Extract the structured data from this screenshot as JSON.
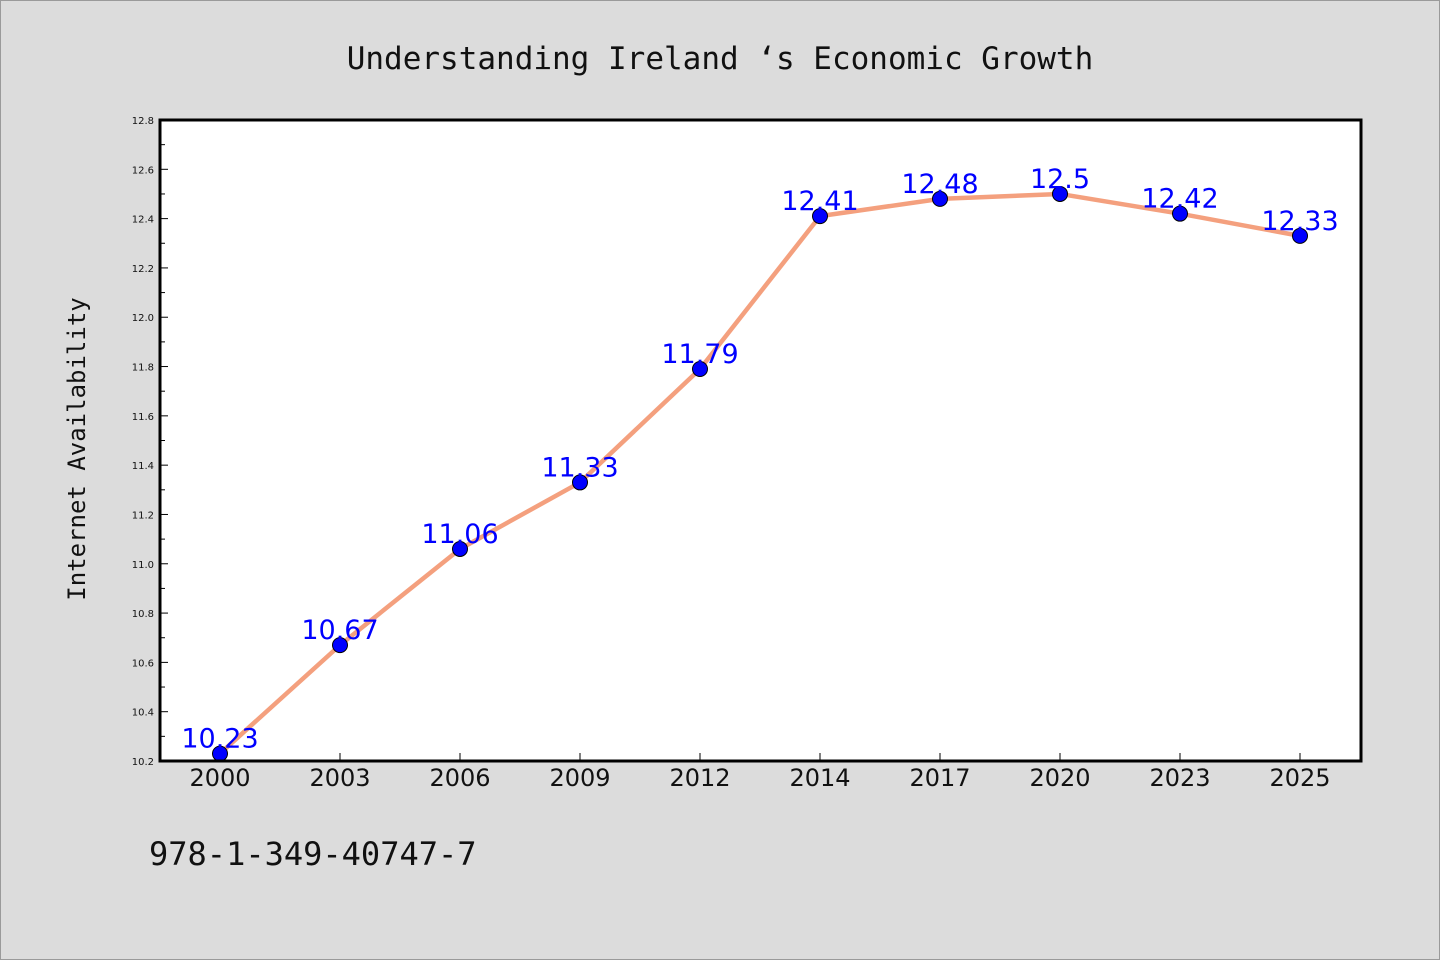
{
  "chart_data": {
    "type": "line",
    "title": "Understanding Ireland ‘s Economic Growth",
    "xlabel": "",
    "ylabel": "Internet Availability",
    "categories": [
      "2000",
      "2003",
      "2006",
      "2009",
      "2012",
      "2014",
      "2017",
      "2020",
      "2023",
      "2025"
    ],
    "series": [
      {
        "values": [
          10.23,
          10.67,
          11.06,
          11.33,
          11.79,
          12.41,
          12.48,
          12.5,
          12.42,
          12.33
        ],
        "labels": [
          "10.23",
          "10.67",
          "11.06",
          "11.33",
          "11.79",
          "12.41",
          "12.48",
          "12.5",
          "12.42",
          "12.33"
        ],
        "line_color": "#f4a07e",
        "marker_color": "#0000ff"
      }
    ],
    "ylim": [
      10.2,
      12.8
    ],
    "yticks": [
      "10.2",
      "10.4",
      "10.6",
      "10.8",
      "11.0",
      "11.2",
      "11.4",
      "11.6",
      "11.8",
      "12.0",
      "12.2",
      "12.4",
      "12.6",
      "12.8"
    ],
    "grid": false,
    "legend": "none",
    "data_label_color": "#0000ff",
    "background_color": "#dcdcdc",
    "plot_background": "#ffffff"
  },
  "footnote": "978-1-349-40747-7"
}
